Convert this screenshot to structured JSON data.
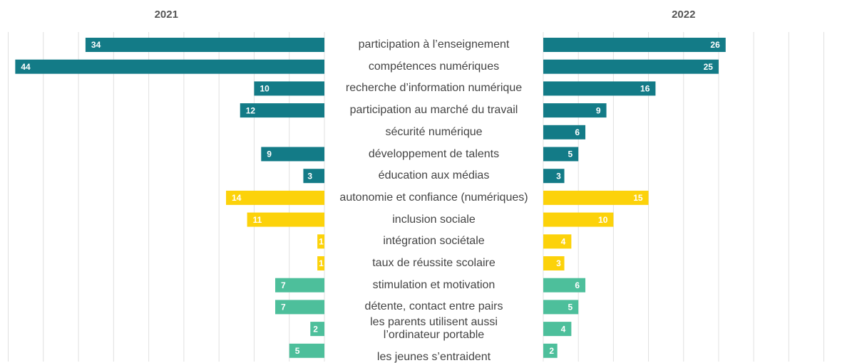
{
  "chart_data": {
    "type": "butterfly",
    "categories": [
      "participation à l’enseignement",
      "compétences numériques",
      "recherche d’information numérique",
      "participation au marché du travail",
      "sécurité numérique",
      "développement de talents",
      "éducation aux médias",
      "autonomie et confiance (numériques)",
      "inclusion sociale",
      "intégration sociétale",
      "taux de réussite scolaire",
      "stimulation et motivation",
      "détente, contact entre pairs",
      "les parents utilisent aussi\nl’ordinateur portable",
      "les jeunes s’entraident"
    ],
    "bar_colors": [
      "#137b87",
      "#137b87",
      "#137b87",
      "#137b87",
      "#137b87",
      "#137b87",
      "#137b87",
      "#fcd20a",
      "#fcd20a",
      "#fcd20a",
      "#fcd20a",
      "#4dbf9b",
      "#4dbf9b",
      "#4dbf9b",
      "#4dbf9b"
    ],
    "series": [
      {
        "name": "2021",
        "values": [
          34,
          44,
          10,
          12,
          null,
          9,
          3,
          14,
          11,
          1,
          1,
          7,
          7,
          2,
          5
        ],
        "xlim": [
          0,
          45
        ],
        "xticks": [
          0,
          5,
          10,
          15,
          20,
          25,
          30,
          35,
          40,
          45
        ]
      },
      {
        "name": "2022",
        "values": [
          26,
          25,
          16,
          9,
          6,
          5,
          3,
          15,
          10,
          4,
          3,
          6,
          5,
          4,
          2
        ],
        "xlim": [
          0,
          40
        ],
        "xticks": [
          0,
          5,
          10,
          15,
          20,
          25,
          30,
          35,
          40
        ]
      }
    ],
    "grid": true
  }
}
